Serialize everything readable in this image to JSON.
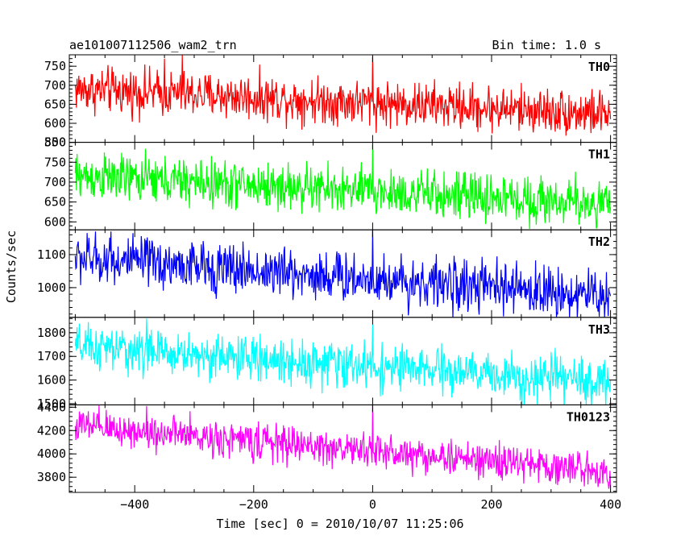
{
  "header": {
    "title": "ae101007112506_wam2_trn",
    "bin_time": "Bin time: 1.0 s"
  },
  "xlabel": "Time [sec] 0 = 2010/10/07 11:25:06",
  "ylabel": "Counts/sec",
  "x_ticks": [
    "−400",
    "−200",
    "0",
    "200",
    "400"
  ],
  "chart_data": [
    {
      "type": "line",
      "name": "TH0",
      "color": "#ff0000",
      "xlim": [
        -510,
        410
      ],
      "ylim": [
        550,
        780
      ],
      "yticks": [
        550,
        600,
        650,
        700,
        750
      ],
      "ytick_labels": [
        "550",
        "600",
        "650",
        "700",
        "750"
      ],
      "trend_start": 690,
      "trend_end": 625,
      "noise": 35,
      "spikes": [
        [
          0,
          775
        ],
        [
          -350,
          770
        ],
        [
          -320,
          780
        ]
      ],
      "x_range": [
        -500,
        400
      ]
    },
    {
      "type": "line",
      "name": "TH1",
      "color": "#00ff00",
      "xlim": [
        -510,
        410
      ],
      "ylim": [
        580,
        800
      ],
      "yticks": [
        600,
        650,
        700,
        750,
        800
      ],
      "ytick_labels": [
        "600",
        "650",
        "700",
        "750",
        "800"
      ],
      "trend_start": 715,
      "trend_end": 645,
      "noise": 35,
      "spikes": [
        [
          0,
          795
        ]
      ],
      "x_range": [
        -500,
        400
      ]
    },
    {
      "type": "line",
      "name": "TH2",
      "color": "#0000ff",
      "xlim": [
        -510,
        410
      ],
      "ylim": [
        910,
        1175
      ],
      "yticks": [
        1000,
        1100
      ],
      "ytick_labels": [
        "1000",
        "1100"
      ],
      "trend_start": 1090,
      "trend_end": 975,
      "noise": 45,
      "spikes": [
        [
          0,
          1175
        ],
        [
          -440,
          1170
        ]
      ],
      "x_range": [
        -500,
        400
      ]
    },
    {
      "type": "line",
      "name": "TH3",
      "color": "#00ffff",
      "xlim": [
        -510,
        410
      ],
      "ylim": [
        1495,
        1865
      ],
      "yticks": [
        1500,
        1600,
        1700,
        1800
      ],
      "ytick_labels": [
        "1500",
        "1600",
        "1700",
        "1800"
      ],
      "trend_start": 1740,
      "trend_end": 1590,
      "noise": 55,
      "spikes": [
        [
          0,
          1835
        ],
        [
          -380,
          1860
        ]
      ],
      "x_range": [
        -500,
        400
      ]
    },
    {
      "type": "line",
      "name": "TH0123",
      "color": "#ff00ff",
      "xlim": [
        -510,
        410
      ],
      "ylim": [
        3670,
        4420
      ],
      "yticks": [
        3800,
        4000,
        4200,
        4400
      ],
      "ytick_labels": [
        "3800",
        "4000",
        "4200",
        "4400"
      ],
      "trend_start": 4240,
      "trend_end": 3850,
      "noise": 90,
      "spikes": [
        [
          0,
          4420
        ],
        [
          -380,
          4410
        ]
      ],
      "x_range": [
        -500,
        400
      ]
    }
  ]
}
